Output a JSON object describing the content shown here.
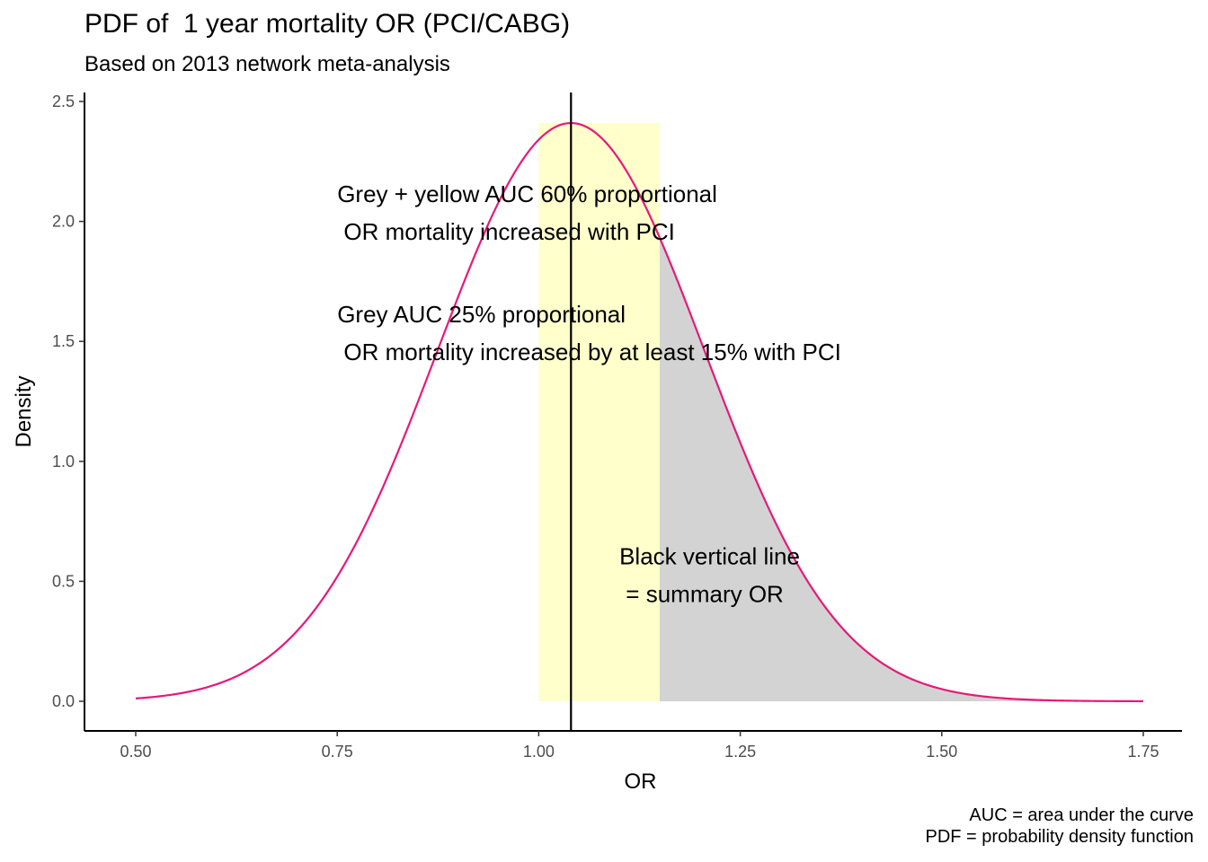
{
  "chart_data": {
    "type": "area",
    "title": "PDF of  1 year mortality OR (PCI/CABG)",
    "subtitle": "Based on 2013 network meta-analysis",
    "xlabel": "OR",
    "ylabel": "Density",
    "xlim": [
      0.5,
      1.75
    ],
    "ylim": [
      0,
      2.5
    ],
    "x_ticks": [
      "0.50",
      "0.75",
      "1.00",
      "1.25",
      "1.50",
      "1.75"
    ],
    "y_ticks": [
      "0.0",
      "0.5",
      "1.0",
      "1.5",
      "2.0",
      "2.5"
    ],
    "grid": false,
    "curve": {
      "color": "#e8187a",
      "x": [
        0.5,
        0.55,
        0.6,
        0.65,
        0.7,
        0.75,
        0.8,
        0.85,
        0.9,
        0.95,
        1.0,
        1.04,
        1.1,
        1.15,
        1.2,
        1.25,
        1.3,
        1.35,
        1.4,
        1.45,
        1.5,
        1.55,
        1.6,
        1.65,
        1.7,
        1.75
      ],
      "y": [
        0.01,
        0.03,
        0.07,
        0.15,
        0.3,
        0.55,
        0.91,
        1.35,
        1.8,
        2.18,
        2.38,
        2.41,
        2.25,
        1.91,
        1.46,
        1.01,
        0.64,
        0.37,
        0.2,
        0.1,
        0.045,
        0.02,
        0.008,
        0.003,
        0.001,
        0.0
      ]
    },
    "yellow_region": {
      "x_from": 1.0,
      "x_to": 1.15,
      "y_top": 2.41,
      "color": "#ffffcc"
    },
    "grey_region": {
      "x_from": 1.15,
      "x_to": 1.75,
      "color": "#d3d3d3"
    },
    "summary_line_x": 1.04,
    "annotations": [
      {
        "x": 0.75,
        "y": 2.08,
        "lines": [
          "Grey + yellow AUC 60% proportional",
          " OR mortality increased with PCI"
        ]
      },
      {
        "x": 0.75,
        "y": 1.58,
        "lines": [
          "Grey AUC 25% proportional",
          " OR mortality increased by at least 15% with PCI"
        ]
      },
      {
        "x": 1.1,
        "y": 0.57,
        "lines": [
          "Black vertical line",
          " = summary OR"
        ]
      }
    ]
  },
  "caption": {
    "line1": "AUC = area under the curve",
    "line2": "PDF = probability density function"
  }
}
